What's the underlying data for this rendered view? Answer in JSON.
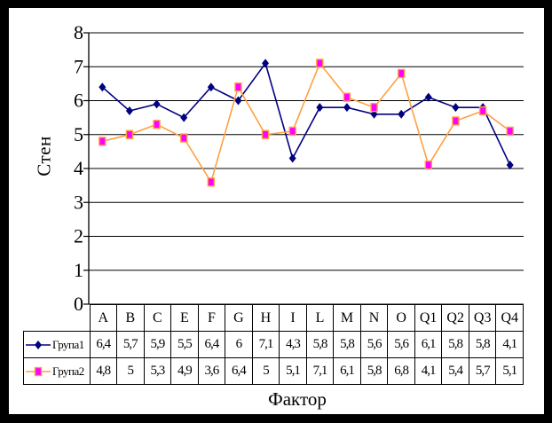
{
  "chart_data": {
    "type": "line",
    "title": "",
    "xlabel": "Фактор",
    "ylabel": "Стен",
    "ylim": [
      0,
      8
    ],
    "yticks": [
      0,
      1,
      2,
      3,
      4,
      5,
      6,
      7,
      8
    ],
    "grid": "horizontal gridlines at every integer",
    "legend_position": "left column of data table under chart",
    "categories": [
      "A",
      "B",
      "C",
      "E",
      "F",
      "G",
      "H",
      "I",
      "L",
      "M",
      "N",
      "O",
      "Q1",
      "Q2",
      "Q3",
      "Q4"
    ],
    "series": [
      {
        "name": "Група1",
        "color": "#000080",
        "marker": "diamond",
        "marker_color": "#000080",
        "values": [
          6.4,
          5.7,
          5.9,
          5.5,
          6.4,
          6,
          7.1,
          4.3,
          5.8,
          5.8,
          5.6,
          5.6,
          6.1,
          5.8,
          5.8,
          4.1
        ],
        "display_values": [
          "6,4",
          "5,7",
          "5,9",
          "5,5",
          "6,4",
          "6",
          "7,1",
          "4,3",
          "5,8",
          "5,8",
          "5,6",
          "5,6",
          "6,1",
          "5,8",
          "5,8",
          "4,1"
        ]
      },
      {
        "name": "Група2",
        "color": "#FFA040",
        "marker": "square",
        "marker_color": "#FF00FF",
        "values": [
          4.8,
          5,
          5.3,
          4.9,
          3.6,
          6.4,
          5,
          5.1,
          7.1,
          6.1,
          5.8,
          6.8,
          4.1,
          5.4,
          5.7,
          5.1
        ],
        "display_values": [
          "4,8",
          "5",
          "5,3",
          "4,9",
          "3,6",
          "6,4",
          "5",
          "5,1",
          "7,1",
          "6,1",
          "5,8",
          "6,8",
          "4,1",
          "5,4",
          "5,7",
          "5,1"
        ]
      }
    ],
    "colors": {
      "frame": "#000000",
      "plot_background": "#FFFFFF",
      "gridline": "#000000",
      "axis": "#000000"
    }
  }
}
